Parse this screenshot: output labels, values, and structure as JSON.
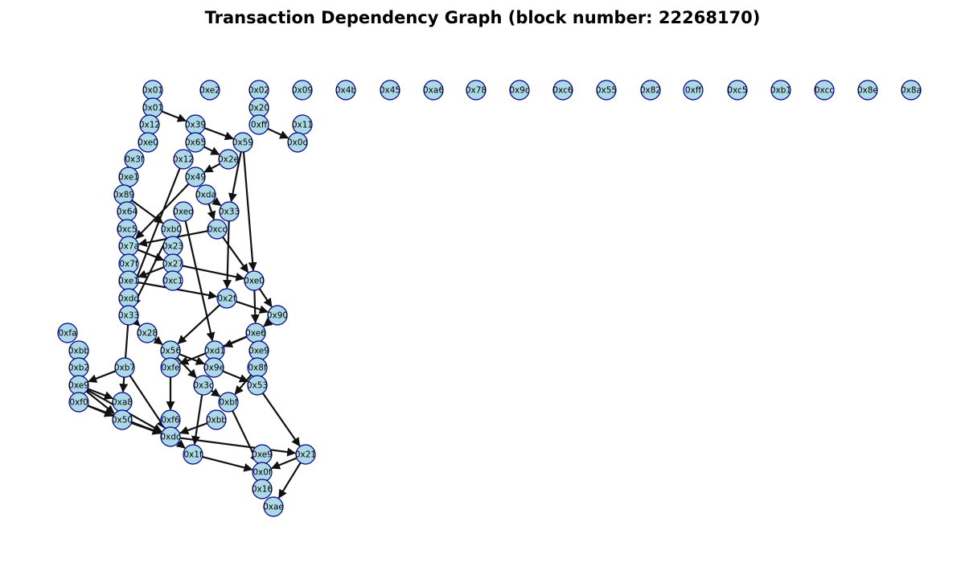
{
  "title": "Transaction Dependency Graph (block number: 22268170)",
  "colors": {
    "node_fill": "#add8e6",
    "node_stroke": "#00008b",
    "edge": "#111111"
  },
  "nodes": [
    {
      "id": "n_0x01a",
      "label": "0x01"
    },
    {
      "id": "n_0xe2",
      "label": "0xe2"
    },
    {
      "id": "n_0x02",
      "label": "0x02"
    },
    {
      "id": "n_0x09",
      "label": "0x09"
    },
    {
      "id": "n_0x4b",
      "label": "0x4b"
    },
    {
      "id": "n_0x45",
      "label": "0x45"
    },
    {
      "id": "n_0xa6",
      "label": "0xa6"
    },
    {
      "id": "n_0x78",
      "label": "0x78"
    },
    {
      "id": "n_0x9c",
      "label": "0x9c"
    },
    {
      "id": "n_0xc6",
      "label": "0xc6"
    },
    {
      "id": "n_0x55",
      "label": "0x55"
    },
    {
      "id": "n_0x82",
      "label": "0x82"
    },
    {
      "id": "n_0xff",
      "label": "0xff"
    },
    {
      "id": "n_0xc5",
      "label": "0xc5"
    },
    {
      "id": "n_0xb1",
      "label": "0xb1"
    },
    {
      "id": "n_0xcc",
      "label": "0xcc"
    },
    {
      "id": "n_0x8e",
      "label": "0x8e"
    },
    {
      "id": "n_0x8a",
      "label": "0x8a"
    },
    {
      "id": "n_0x01b",
      "label": "0x01"
    },
    {
      "id": "n_0x20",
      "label": "0x20"
    },
    {
      "id": "n_0x12a",
      "label": "0x12"
    },
    {
      "id": "n_0x39",
      "label": "0x39"
    },
    {
      "id": "n_0xffb",
      "label": "0xff"
    },
    {
      "id": "n_0x11",
      "label": "0x11"
    },
    {
      "id": "n_0xe0a",
      "label": "0xe0"
    },
    {
      "id": "n_0x65",
      "label": "0x65"
    },
    {
      "id": "n_0x59",
      "label": "0x59"
    },
    {
      "id": "n_0x0d",
      "label": "0x0d"
    },
    {
      "id": "n_0x3f",
      "label": "0x3f"
    },
    {
      "id": "n_0x12b",
      "label": "0x12"
    },
    {
      "id": "n_0x2e",
      "label": "0x2e"
    },
    {
      "id": "n_0xe1a",
      "label": "0xe1"
    },
    {
      "id": "n_0x49",
      "label": "0x49"
    },
    {
      "id": "n_0x89",
      "label": "0x89"
    },
    {
      "id": "n_0xda",
      "label": "0xda"
    },
    {
      "id": "n_0x64",
      "label": "0x64"
    },
    {
      "id": "n_0xed",
      "label": "0xed"
    },
    {
      "id": "n_0x33a",
      "label": "0x33"
    },
    {
      "id": "n_0xc5b",
      "label": "0xc5"
    },
    {
      "id": "n_0xb0",
      "label": "0xb0"
    },
    {
      "id": "n_0xcc2",
      "label": "0xcc"
    },
    {
      "id": "n_0x7a",
      "label": "0x7a"
    },
    {
      "id": "n_0x23",
      "label": "0x23"
    },
    {
      "id": "n_0x7f",
      "label": "0x7f"
    },
    {
      "id": "n_0x27",
      "label": "0x27"
    },
    {
      "id": "n_0xe1b",
      "label": "0xe1"
    },
    {
      "id": "n_0xc1",
      "label": "0xc1"
    },
    {
      "id": "n_0xe0b",
      "label": "0xe0"
    },
    {
      "id": "n_0xdd",
      "label": "0xdd"
    },
    {
      "id": "n_0x2f",
      "label": "0x2f"
    },
    {
      "id": "n_0x33b",
      "label": "0x33"
    },
    {
      "id": "n_0x90",
      "label": "0x90"
    },
    {
      "id": "n_0xfa",
      "label": "0xfa"
    },
    {
      "id": "n_0x28",
      "label": "0x28"
    },
    {
      "id": "n_0xe6",
      "label": "0xe6"
    },
    {
      "id": "n_0xbb",
      "label": "0xbb"
    },
    {
      "id": "n_0x56",
      "label": "0x56"
    },
    {
      "id": "n_0xd1",
      "label": "0xd1"
    },
    {
      "id": "n_0xe9a",
      "label": "0xe9"
    },
    {
      "id": "n_0xb2",
      "label": "0xb2"
    },
    {
      "id": "n_0xb7",
      "label": "0xb7"
    },
    {
      "id": "n_0xfe",
      "label": "0xfe"
    },
    {
      "id": "n_0x9e",
      "label": "0x9e"
    },
    {
      "id": "n_0x8f",
      "label": "0x8f"
    },
    {
      "id": "n_0xe9b",
      "label": "0xe9"
    },
    {
      "id": "n_0x3c",
      "label": "0x3c"
    },
    {
      "id": "n_0x53",
      "label": "0x53"
    },
    {
      "id": "n_0xa8",
      "label": "0xa8"
    },
    {
      "id": "n_0xf0",
      "label": "0xf0"
    },
    {
      "id": "n_0xbf",
      "label": "0xbf"
    },
    {
      "id": "n_0x50",
      "label": "0x50"
    },
    {
      "id": "n_0xf6",
      "label": "0xf6"
    },
    {
      "id": "n_0xbb2",
      "label": "0xbb"
    },
    {
      "id": "n_0xdc",
      "label": "0xdc"
    },
    {
      "id": "n_0x1f",
      "label": "0x1f"
    },
    {
      "id": "n_0xe9c",
      "label": "0xe9"
    },
    {
      "id": "n_0x21",
      "label": "0x21"
    },
    {
      "id": "n_0x0f",
      "label": "0x0f"
    },
    {
      "id": "n_0x16",
      "label": "0x16"
    },
    {
      "id": "n_0xae",
      "label": "0xae"
    }
  ],
  "edges": [
    [
      "n_0x01b",
      "n_0x39"
    ],
    [
      "n_0x39",
      "n_0x59"
    ],
    [
      "n_0xffb",
      "n_0x0d"
    ],
    [
      "n_0x65",
      "n_0x2e"
    ],
    [
      "n_0x2e",
      "n_0x49"
    ],
    [
      "n_0x59",
      "n_0x33a"
    ],
    [
      "n_0x59",
      "n_0xe0b"
    ],
    [
      "n_0x12b",
      "n_0xdd"
    ],
    [
      "n_0x89",
      "n_0xb0"
    ],
    [
      "n_0xda",
      "n_0x33a"
    ],
    [
      "n_0xda",
      "n_0xcc2"
    ],
    [
      "n_0x33a",
      "n_0x2f"
    ],
    [
      "n_0x49",
      "n_0x7a"
    ],
    [
      "n_0xcc2",
      "n_0x7a"
    ],
    [
      "n_0xcc2",
      "n_0xe0b"
    ],
    [
      "n_0x7a",
      "n_0x27"
    ],
    [
      "n_0x27",
      "n_0xe0b"
    ],
    [
      "n_0x27",
      "n_0xe1b"
    ],
    [
      "n_0xb0",
      "n_0x33b"
    ],
    [
      "n_0xe1b",
      "n_0x2f"
    ],
    [
      "n_0xed",
      "n_0xd1"
    ],
    [
      "n_0xe0b",
      "n_0x90"
    ],
    [
      "n_0xe0b",
      "n_0xe6"
    ],
    [
      "n_0x2f",
      "n_0x90"
    ],
    [
      "n_0x2f",
      "n_0x56"
    ],
    [
      "n_0x33b",
      "n_0x28"
    ],
    [
      "n_0x33b",
      "n_0xa8"
    ],
    [
      "n_0x28",
      "n_0x56"
    ],
    [
      "n_0x90",
      "n_0xe6"
    ],
    [
      "n_0xe6",
      "n_0xd1"
    ],
    [
      "n_0xe6",
      "n_0xfe"
    ],
    [
      "n_0x56",
      "n_0x9e"
    ],
    [
      "n_0x56",
      "n_0x3c"
    ],
    [
      "n_0xb7",
      "n_0xe9b"
    ],
    [
      "n_0xb7",
      "n_0xdc"
    ],
    [
      "n_0xfe",
      "n_0xf6"
    ],
    [
      "n_0x9e",
      "n_0x53"
    ],
    [
      "n_0x8f",
      "n_0xbf"
    ],
    [
      "n_0x53",
      "n_0x21"
    ],
    [
      "n_0xe9b",
      "n_0xa8"
    ],
    [
      "n_0xe9b",
      "n_0x50"
    ],
    [
      "n_0xe9b",
      "n_0xdc"
    ],
    [
      "n_0x3c",
      "n_0x1f"
    ],
    [
      "n_0x3c",
      "n_0xbf"
    ],
    [
      "n_0xf0",
      "n_0x50"
    ],
    [
      "n_0xf0",
      "n_0xdc"
    ],
    [
      "n_0x50",
      "n_0xdc"
    ],
    [
      "n_0xbf",
      "n_0x0f"
    ],
    [
      "n_0xbb2",
      "n_0xdc"
    ],
    [
      "n_0xdc",
      "n_0x1f"
    ],
    [
      "n_0xdc",
      "n_0x21"
    ],
    [
      "n_0x1f",
      "n_0x0f"
    ],
    [
      "n_0x21",
      "n_0x0f"
    ],
    [
      "n_0x21",
      "n_0xae"
    ]
  ]
}
